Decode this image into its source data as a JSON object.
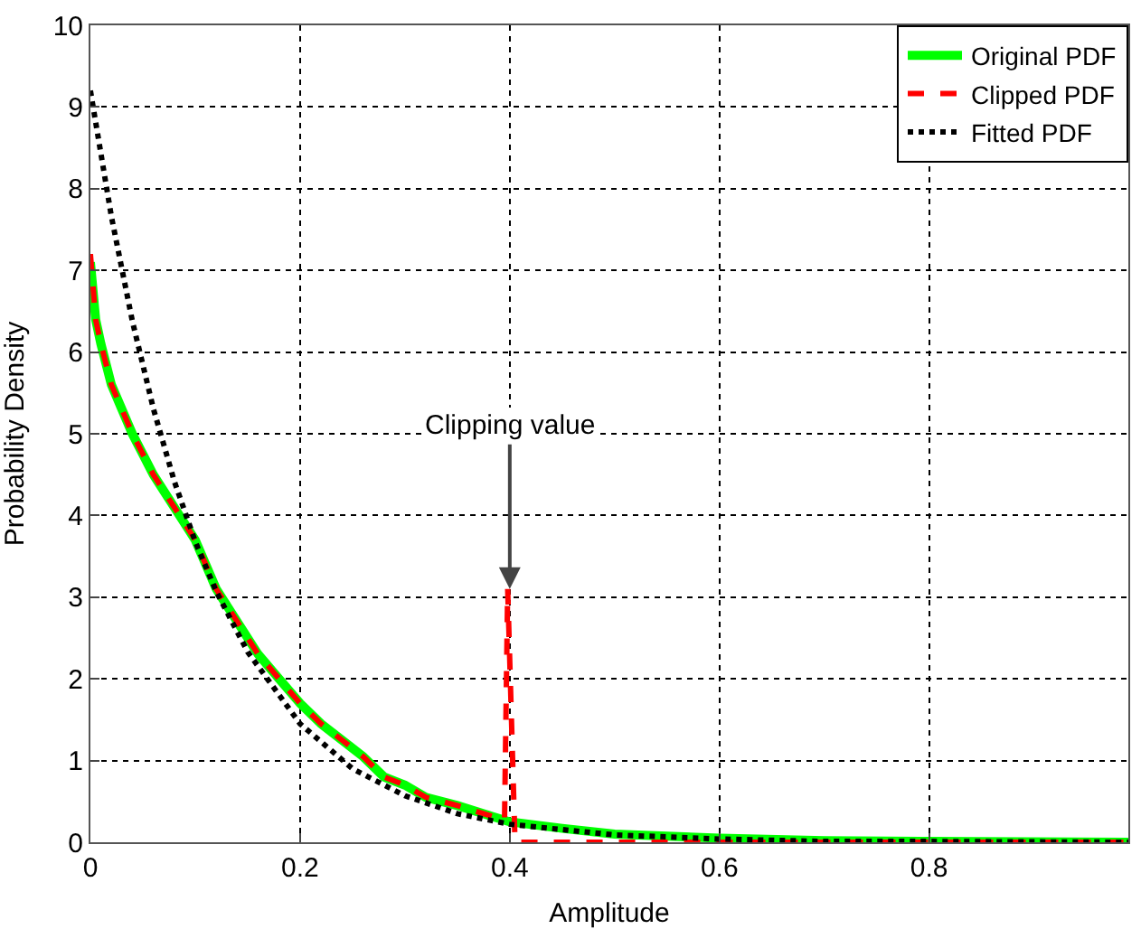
{
  "chart_data": {
    "type": "line",
    "xlabel": "Amplitude",
    "ylabel": "Probability Density",
    "xlim": [
      0,
      0.99
    ],
    "xticks": [
      0,
      0.2,
      0.4,
      0.6,
      0.8
    ],
    "ylim": [
      0,
      10
    ],
    "yticks": [
      0,
      1,
      2,
      3,
      4,
      5,
      6,
      7,
      8,
      9,
      10
    ],
    "grid": true,
    "legend": "top right",
    "annotations": [
      {
        "text": "Clipping value",
        "x": 0.4,
        "y": 3.1
      }
    ],
    "series": [
      {
        "name": "Original PDF",
        "color": "#00ff00",
        "line_style": "solid",
        "x": [
          0,
          0.005,
          0.01,
          0.02,
          0.04,
          0.06,
          0.08,
          0.1,
          0.12,
          0.14,
          0.16,
          0.18,
          0.2,
          0.22,
          0.24,
          0.26,
          0.28,
          0.3,
          0.32,
          0.35,
          0.38,
          0.4,
          0.45,
          0.5,
          0.6,
          0.7,
          0.8,
          0.99
        ],
        "values": [
          7.1,
          6.4,
          6.1,
          5.6,
          5.0,
          4.5,
          4.1,
          3.7,
          3.1,
          2.7,
          2.3,
          2.0,
          1.7,
          1.45,
          1.25,
          1.05,
          0.8,
          0.7,
          0.55,
          0.45,
          0.33,
          0.25,
          0.17,
          0.1,
          0.05,
          0.02,
          0.01,
          0
        ]
      },
      {
        "name": "Clipped PDF",
        "color": "#ff0000",
        "line_style": "dashed",
        "x": [
          0,
          0.005,
          0.01,
          0.02,
          0.04,
          0.06,
          0.08,
          0.1,
          0.12,
          0.14,
          0.16,
          0.18,
          0.2,
          0.22,
          0.24,
          0.26,
          0.28,
          0.3,
          0.32,
          0.35,
          0.38,
          0.395,
          0.398,
          0.405,
          0.5,
          0.99
        ],
        "values": [
          7.2,
          6.4,
          6.1,
          5.6,
          5.0,
          4.5,
          4.1,
          3.7,
          3.1,
          2.7,
          2.3,
          2.0,
          1.7,
          1.45,
          1.25,
          1.05,
          0.8,
          0.7,
          0.55,
          0.45,
          0.33,
          0.27,
          3.1,
          0,
          0,
          0
        ]
      },
      {
        "name": "Fitted PDF",
        "color": "#000000",
        "line_style": "dotted",
        "x": [
          0,
          0.02,
          0.04,
          0.06,
          0.08,
          0.1,
          0.12,
          0.15,
          0.2,
          0.25,
          0.3,
          0.35,
          0.4,
          0.5,
          0.6,
          0.7,
          0.8,
          0.99
        ],
        "values": [
          9.2,
          7.66,
          6.38,
          5.31,
          4.42,
          3.68,
          3.07,
          2.33,
          1.45,
          0.9,
          0.57,
          0.35,
          0.22,
          0.09,
          0.04,
          0.01,
          0.01,
          0
        ]
      }
    ]
  }
}
